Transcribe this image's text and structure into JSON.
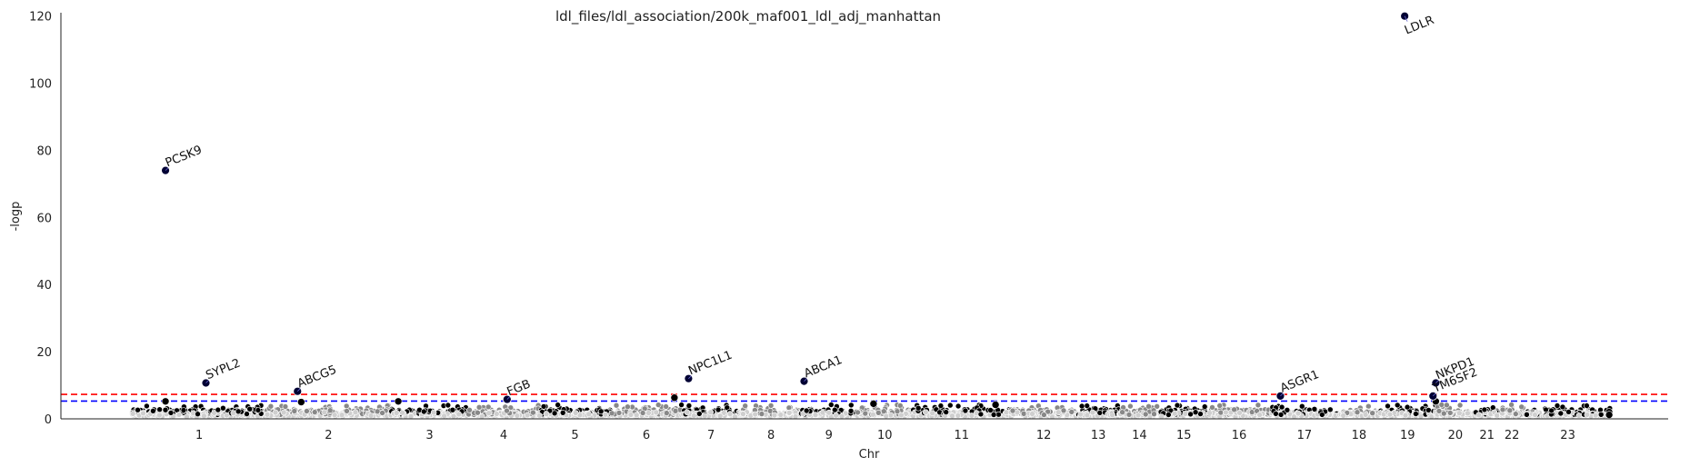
{
  "chart_data": {
    "type": "scatter",
    "title": "ldl_files/ldl_association/200k_maf001_ldl_adj_manhattan",
    "xlabel": "Chr",
    "ylabel": "-logp",
    "ylim": [
      0,
      121
    ],
    "yticks": [
      0,
      20,
      40,
      60,
      80,
      100,
      120
    ],
    "grid": false,
    "chromosomes": [
      {
        "label": "1",
        "start": 0,
        "end": 1.0
      },
      {
        "label": "2",
        "start": 1.0,
        "end": 1.92
      },
      {
        "label": "3",
        "start": 1.92,
        "end": 2.5
      },
      {
        "label": "4",
        "start": 2.5,
        "end": 3.02
      },
      {
        "label": "5",
        "start": 3.02,
        "end": 3.56
      },
      {
        "label": "6",
        "start": 3.56,
        "end": 4.08
      },
      {
        "label": "7",
        "start": 4.08,
        "end": 4.52
      },
      {
        "label": "8",
        "start": 4.52,
        "end": 4.97
      },
      {
        "label": "9",
        "start": 4.97,
        "end": 5.38
      },
      {
        "label": "10",
        "start": 5.38,
        "end": 5.8
      },
      {
        "label": "11",
        "start": 5.8,
        "end": 6.52
      },
      {
        "label": "12",
        "start": 6.52,
        "end": 7.02
      },
      {
        "label": "13",
        "start": 7.02,
        "end": 7.33
      },
      {
        "label": "14",
        "start": 7.33,
        "end": 7.63
      },
      {
        "label": "15",
        "start": 7.63,
        "end": 7.99
      },
      {
        "label": "16",
        "start": 7.99,
        "end": 8.45
      },
      {
        "label": "17",
        "start": 8.45,
        "end": 8.96
      },
      {
        "label": "18",
        "start": 8.96,
        "end": 9.26
      },
      {
        "label": "19",
        "start": 9.26,
        "end": 9.68
      },
      {
        "label": "20",
        "start": 9.68,
        "end": 9.97
      },
      {
        "label": "21",
        "start": 9.97,
        "end": 10.15
      },
      {
        "label": "22",
        "start": 10.15,
        "end": 10.34
      },
      {
        "label": "23",
        "start": 10.34,
        "end": 10.98
      }
    ],
    "background_seed": 7,
    "hits": [
      {
        "gene": "PCSK9",
        "chr": "1",
        "pos": 0.25,
        "y": 74.0
      },
      {
        "gene": "SYPL2",
        "chr": "1",
        "pos": 0.55,
        "y": 10.7
      },
      {
        "gene": "ABCG5",
        "chr": "2",
        "pos": 0.25,
        "y": 8.2
      },
      {
        "gene": "FGB",
        "chr": "4",
        "pos": 0.55,
        "y": 5.8
      },
      {
        "gene": "NPC1L1",
        "chr": "7",
        "pos": 0.12,
        "y": 12.0
      },
      {
        "gene": "ABCA1",
        "chr": "9",
        "pos": 0.05,
        "y": 11.2
      },
      {
        "gene": "ASGR1",
        "chr": "17",
        "pos": 0.15,
        "y": 6.8
      },
      {
        "gene": "LDLR",
        "chr": "19",
        "pos": 0.45,
        "y": 120.0
      },
      {
        "gene": "TM6SF2",
        "chr": "19",
        "pos": 0.95,
        "y": 6.8
      },
      {
        "gene": "NKPD1",
        "chr": "20",
        "pos": 0.0,
        "y": 10.7
      }
    ],
    "extra_points": [
      {
        "chr": "1",
        "pos": 0.25,
        "y": 5.2
      },
      {
        "chr": "2",
        "pos": 0.28,
        "y": 5.0
      },
      {
        "chr": "3",
        "pos": 0.1,
        "y": 5.2
      },
      {
        "chr": "6",
        "pos": 0.9,
        "y": 6.3
      },
      {
        "chr": "10",
        "pos": 0.3,
        "y": 4.5
      },
      {
        "chr": "11",
        "pos": 0.85,
        "y": 4.2
      },
      {
        "chr": "20",
        "pos": 0.0,
        "y": 5.2
      },
      {
        "chr": "23",
        "pos": 0.98,
        "y": 2.0
      },
      {
        "chr": "23",
        "pos": 0.98,
        "y": 1.2
      }
    ],
    "thresholds": [
      {
        "y": 7.3,
        "color": "#ff0000"
      },
      {
        "y": 5.3,
        "color": "#0000ff"
      }
    ],
    "colors": {
      "hit": "#000033",
      "odd_chr": "#000000",
      "even_chr": "#888888",
      "pale": "#cfcfcf",
      "axis": "#222222"
    }
  }
}
